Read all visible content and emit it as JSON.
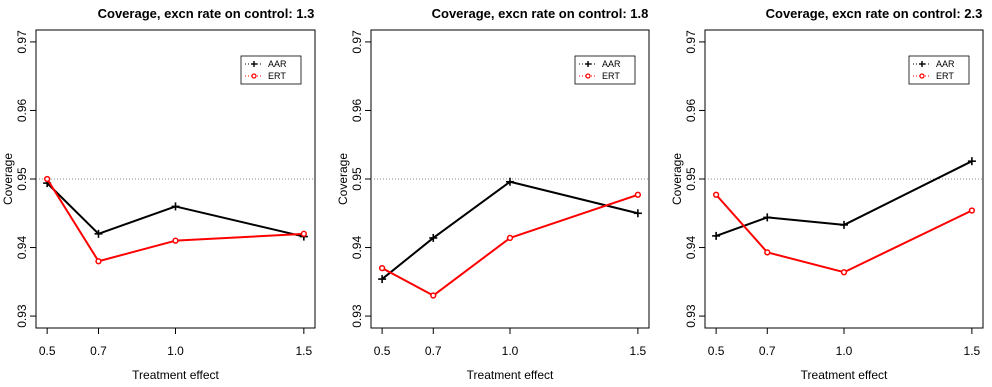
{
  "chart_data": [
    {
      "type": "line",
      "title": "Coverage, excn rate on control: 1.3",
      "xlabel": "Treatment effect",
      "ylabel": "Coverage",
      "x": [
        0.5,
        0.7,
        1.0,
        1.5
      ],
      "x_tick_labels": [
        "0.5",
        "0.7",
        "1.0",
        "1.5"
      ],
      "ylim": [
        0.93,
        0.97
      ],
      "y_ticks": [
        0.93,
        0.94,
        0.95,
        0.96,
        0.97
      ],
      "y_tick_labels": [
        "0.93",
        "0.94",
        "0.95",
        "0.96",
        "0.97"
      ],
      "reference_line": 0.95,
      "legend_position": "top-right",
      "series": [
        {
          "name": "AAR",
          "color": "#000000",
          "marker": "plus",
          "values": [
            0.9494,
            0.942,
            0.946,
            0.9416
          ]
        },
        {
          "name": "ERT",
          "color": "#ff0000",
          "marker": "circle",
          "values": [
            0.95,
            0.938,
            0.941,
            0.942
          ]
        }
      ]
    },
    {
      "type": "line",
      "title": "Coverage, excn rate on control: 1.8",
      "xlabel": "Treatment effect",
      "ylabel": "Coverage",
      "x": [
        0.5,
        0.7,
        1.0,
        1.5
      ],
      "x_tick_labels": [
        "0.5",
        "0.7",
        "1.0",
        "1.5"
      ],
      "ylim": [
        0.93,
        0.97
      ],
      "y_ticks": [
        0.93,
        0.94,
        0.95,
        0.96,
        0.97
      ],
      "y_tick_labels": [
        "0.93",
        "0.94",
        "0.95",
        "0.96",
        "0.97"
      ],
      "reference_line": 0.95,
      "legend_position": "top-right",
      "series": [
        {
          "name": "AAR",
          "color": "#000000",
          "marker": "plus",
          "values": [
            0.9354,
            0.9414,
            0.9496,
            0.945
          ]
        },
        {
          "name": "ERT",
          "color": "#ff0000",
          "marker": "circle",
          "values": [
            0.937,
            0.933,
            0.9414,
            0.9477
          ]
        }
      ]
    },
    {
      "type": "line",
      "title": "Coverage, excn rate on control: 2.3",
      "xlabel": "Treatment effect",
      "ylabel": "Coverage",
      "x": [
        0.5,
        0.7,
        1.0,
        1.5
      ],
      "x_tick_labels": [
        "0.5",
        "0.7",
        "1.0",
        "1.5"
      ],
      "ylim": [
        0.93,
        0.97
      ],
      "y_ticks": [
        0.93,
        0.94,
        0.95,
        0.96,
        0.97
      ],
      "y_tick_labels": [
        "0.93",
        "0.94",
        "0.95",
        "0.96",
        "0.97"
      ],
      "reference_line": 0.95,
      "legend_position": "top-right",
      "series": [
        {
          "name": "AAR",
          "color": "#000000",
          "marker": "plus",
          "values": [
            0.9417,
            0.9444,
            0.9433,
            0.9526
          ]
        },
        {
          "name": "ERT",
          "color": "#ff0000",
          "marker": "circle",
          "values": [
            0.9477,
            0.9393,
            0.9364,
            0.9454
          ]
        }
      ]
    }
  ]
}
